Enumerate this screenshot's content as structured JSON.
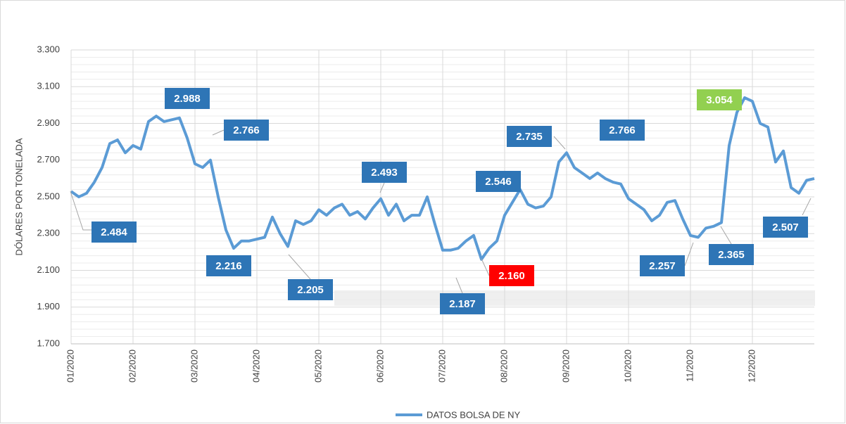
{
  "chart_data": {
    "type": "line",
    "y_label": "DÓLARES POR TONELADA",
    "categories": [
      "01/2020",
      null,
      null,
      null,
      null,
      null,
      null,
      null,
      "02/2020",
      null,
      null,
      null,
      null,
      null,
      null,
      null,
      "03/2020",
      null,
      null,
      null,
      null,
      null,
      null,
      null,
      "04/2020",
      null,
      null,
      null,
      null,
      null,
      null,
      null,
      "05/2020",
      null,
      null,
      null,
      null,
      null,
      null,
      null,
      "06/2020",
      null,
      null,
      null,
      null,
      null,
      null,
      null,
      "07/2020",
      null,
      null,
      null,
      null,
      null,
      null,
      null,
      "08/2020",
      null,
      null,
      null,
      null,
      null,
      null,
      null,
      "09/2020",
      null,
      null,
      null,
      null,
      null,
      null,
      null,
      "10/2020",
      null,
      null,
      null,
      null,
      null,
      null,
      null,
      "11/2020",
      null,
      null,
      null,
      null,
      null,
      null,
      null,
      "12/2020",
      null,
      null,
      null,
      null,
      null,
      null,
      null,
      null
    ],
    "series": [
      {
        "name": "DATOS BOLSA DE NY",
        "color": "#5b9bd5",
        "values": [
          2.53,
          2.5,
          2.52,
          2.58,
          2.66,
          2.79,
          2.81,
          2.74,
          2.78,
          2.76,
          2.91,
          2.94,
          2.91,
          2.92,
          2.93,
          2.82,
          2.68,
          2.66,
          2.7,
          2.5,
          2.32,
          2.22,
          2.26,
          2.26,
          2.27,
          2.28,
          2.39,
          2.3,
          2.23,
          2.37,
          2.35,
          2.37,
          2.43,
          2.4,
          2.44,
          2.46,
          2.4,
          2.42,
          2.38,
          2.44,
          2.49,
          2.4,
          2.46,
          2.37,
          2.4,
          2.4,
          2.5,
          2.35,
          2.21,
          2.21,
          2.22,
          2.26,
          2.29,
          2.16,
          2.22,
          2.26,
          2.4,
          2.47,
          2.54,
          2.46,
          2.44,
          2.45,
          2.5,
          2.69,
          2.74,
          2.66,
          2.63,
          2.6,
          2.63,
          2.6,
          2.58,
          2.57,
          2.49,
          2.46,
          2.43,
          2.37,
          2.4,
          2.47,
          2.48,
          2.38,
          2.29,
          2.28,
          2.33,
          2.34,
          2.36,
          2.78,
          2.96,
          3.04,
          3.02,
          2.9,
          2.88,
          2.69,
          2.75,
          2.55,
          2.52,
          2.59,
          2.6
        ]
      }
    ],
    "ylim": [
      1.7,
      3.3
    ],
    "yticks": [
      {
        "value": 1.7,
        "label": "1.700"
      },
      {
        "value": 1.9,
        "label": "1.900"
      },
      {
        "value": 2.1,
        "label": "2.100"
      },
      {
        "value": 2.3,
        "label": "2.300"
      },
      {
        "value": 2.5,
        "label": "2.500"
      },
      {
        "value": 2.7,
        "label": "2.700"
      },
      {
        "value": 2.9,
        "label": "2.900"
      },
      {
        "value": 3.1,
        "label": "3.100"
      },
      {
        "value": 3.3,
        "label": "3.300"
      }
    ],
    "grid": true,
    "legend": "bottom",
    "annotations": [
      {
        "text": "2.484",
        "color": "#2e75b6"
      },
      {
        "text": "2.988",
        "color": "#2e75b6"
      },
      {
        "text": "2.766",
        "color": "#2e75b6"
      },
      {
        "text": "2.216",
        "color": "#2e75b6"
      },
      {
        "text": "2.205",
        "color": "#2e75b6"
      },
      {
        "text": "2.493",
        "color": "#2e75b6"
      },
      {
        "text": "2.546",
        "color": "#2e75b6"
      },
      {
        "text": "2.187",
        "color": "#2e75b6"
      },
      {
        "text": "2.160",
        "color": "#ff0000"
      },
      {
        "text": "2.735",
        "color": "#2e75b6"
      },
      {
        "text": "2.766",
        "color": "#2e75b6"
      },
      {
        "text": "3.054",
        "color": "#92d050"
      },
      {
        "text": "2.257",
        "color": "#2e75b6"
      },
      {
        "text": "2.365",
        "color": "#2e75b6"
      },
      {
        "text": "2.507",
        "color": "#2e75b6"
      }
    ]
  }
}
